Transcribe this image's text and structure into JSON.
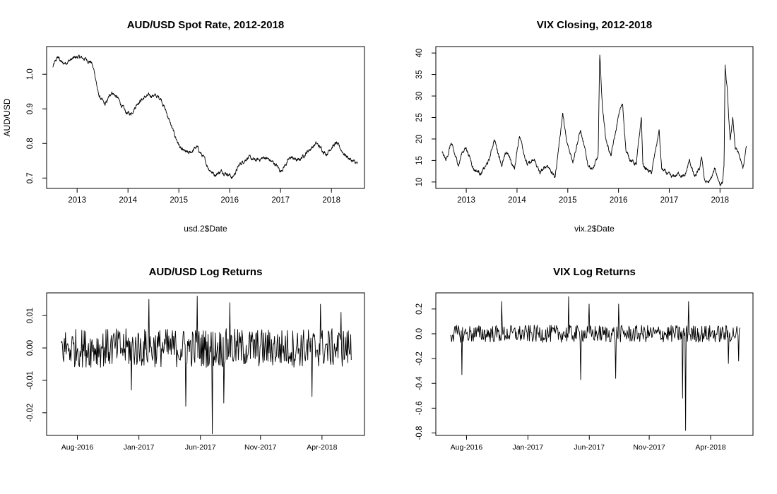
{
  "chart_data": [
    {
      "type": "line",
      "title": "AUD/USD Spot Rate, 2012-2018",
      "xlabel": "usd.2$Date",
      "ylabel": "AUD/USD",
      "xlim": [
        2012.4,
        2018.65
      ],
      "ylim": [
        0.67,
        1.08
      ],
      "x_ticks": [
        2013,
        2014,
        2015,
        2016,
        2017,
        2018
      ],
      "x_tick_labels": [
        "2013",
        "2014",
        "2015",
        "2016",
        "2017",
        "2018"
      ],
      "y_ticks": [
        0.7,
        0.8,
        0.9,
        1.0
      ],
      "y_tick_labels": [
        "0.7",
        "0.8",
        "0.9",
        "1.0"
      ],
      "grid": false,
      "series": [
        {
          "x": [
            2012.52,
            2012.62,
            2012.72,
            2012.85,
            2013.0,
            2013.15,
            2013.28,
            2013.35,
            2013.42,
            2013.55,
            2013.68,
            2013.8,
            2013.95,
            2014.05,
            2014.2,
            2014.35,
            2014.5,
            2014.65,
            2014.78,
            2014.9,
            2015.05,
            2015.2,
            2015.35,
            2015.48,
            2015.58,
            2015.7,
            2015.85,
            2016.0,
            2016.05,
            2016.2,
            2016.35,
            2016.5,
            2016.7,
            2016.9,
            2017.0,
            2017.2,
            2017.35,
            2017.55,
            2017.7,
            2017.9,
            2018.0,
            2018.1,
            2018.25,
            2018.4,
            2018.52
          ],
          "y": [
            1.02,
            1.05,
            1.03,
            1.04,
            1.05,
            1.045,
            1.035,
            1.0,
            0.94,
            0.91,
            0.95,
            0.93,
            0.89,
            0.885,
            0.92,
            0.935,
            0.94,
            0.93,
            0.88,
            0.83,
            0.78,
            0.77,
            0.79,
            0.76,
            0.73,
            0.71,
            0.72,
            0.71,
            0.7,
            0.74,
            0.76,
            0.75,
            0.76,
            0.74,
            0.72,
            0.76,
            0.75,
            0.78,
            0.8,
            0.77,
            0.79,
            0.8,
            0.77,
            0.75,
            0.74
          ]
        }
      ]
    },
    {
      "type": "line",
      "title": "VIX Closing, 2012-2018",
      "xlabel": "vix.2$Date",
      "ylabel": "",
      "xlim": [
        2012.4,
        2018.65
      ],
      "ylim": [
        8.5,
        41.5
      ],
      "x_ticks": [
        2013,
        2014,
        2015,
        2016,
        2017,
        2018
      ],
      "x_tick_labels": [
        "2013",
        "2014",
        "2015",
        "2016",
        "2017",
        "2018"
      ],
      "y_ticks": [
        10,
        15,
        20,
        25,
        30,
        35,
        40
      ],
      "y_tick_labels": [
        "10",
        "15",
        "20",
        "25",
        "30",
        "35",
        "40"
      ],
      "grid": false,
      "series": [
        {
          "x": [
            2012.52,
            2012.6,
            2012.7,
            2012.78,
            2012.85,
            2012.92,
            2013.0,
            2013.15,
            2013.3,
            2013.45,
            2013.55,
            2013.7,
            2013.8,
            2013.95,
            2014.05,
            2014.2,
            2014.35,
            2014.45,
            2014.6,
            2014.75,
            2014.8,
            2014.9,
            2014.98,
            2015.1,
            2015.25,
            2015.4,
            2015.5,
            2015.6,
            2015.63,
            2015.68,
            2015.75,
            2015.85,
            2015.95,
            2016.03,
            2016.08,
            2016.15,
            2016.25,
            2016.35,
            2016.45,
            2016.48,
            2016.55,
            2016.65,
            2016.8,
            2016.85,
            2016.95,
            2017.05,
            2017.2,
            2017.3,
            2017.4,
            2017.5,
            2017.6,
            2017.64,
            2017.7,
            2017.8,
            2017.9,
            2018.0,
            2018.05,
            2018.08,
            2018.1,
            2018.15,
            2018.2,
            2018.25,
            2018.3,
            2018.38,
            2018.45,
            2018.52
          ],
          "y": [
            17,
            15,
            19,
            16,
            14,
            17,
            18,
            13,
            12,
            15,
            20,
            14,
            17,
            13,
            21,
            14,
            15,
            12,
            14,
            11,
            16,
            26,
            19,
            15,
            22,
            14,
            13,
            16,
            40,
            28,
            20,
            16,
            22,
            27,
            28,
            17,
            15,
            14,
            25,
            14,
            13,
            12,
            22,
            13,
            12,
            11,
            12,
            11,
            15,
            11,
            13,
            16,
            10,
            10,
            13,
            9.5,
            10,
            14,
            37,
            30,
            19,
            25,
            18,
            16,
            13,
            18
          ]
        }
      ]
    },
    {
      "type": "line",
      "title": "AUD/USD Log Returns",
      "xlabel": "",
      "ylabel": "",
      "xlim": [
        2016.37,
        2018.54
      ],
      "ylim": [
        -0.027,
        0.017
      ],
      "x_ticks": [
        2016.58,
        2017.0,
        2017.42,
        2017.83,
        2018.25
      ],
      "x_tick_labels": [
        "Aug-2016",
        "Jan-2017",
        "Jun-2017",
        "Nov-2017",
        "Apr-2018"
      ],
      "y_ticks": [
        -0.02,
        -0.01,
        0.0,
        0.01
      ],
      "y_tick_labels": [
        "-0.02",
        "-0.01",
        "0.00",
        "0.01"
      ],
      "grid": false,
      "series": [
        {
          "x_range": [
            2016.47,
            2018.45
          ],
          "amplitude": 0.006,
          "spikes": [
            {
              "x": 2016.95,
              "y": -0.013
            },
            {
              "x": 2017.07,
              "y": 0.015
            },
            {
              "x": 2017.32,
              "y": -0.018
            },
            {
              "x": 2017.4,
              "y": 0.016
            },
            {
              "x": 2017.5,
              "y": -0.0265
            },
            {
              "x": 2017.58,
              "y": -0.017
            },
            {
              "x": 2017.62,
              "y": 0.014
            },
            {
              "x": 2018.18,
              "y": -0.015
            },
            {
              "x": 2018.24,
              "y": 0.0135
            },
            {
              "x": 2018.38,
              "y": 0.011
            }
          ]
        }
      ]
    },
    {
      "type": "line",
      "title": "VIX Log Returns",
      "xlabel": "",
      "ylabel": "",
      "xlim": [
        2016.37,
        2018.54
      ],
      "ylim": [
        -0.82,
        0.33
      ],
      "x_ticks": [
        2016.58,
        2017.0,
        2017.42,
        2017.83,
        2018.25
      ],
      "x_tick_labels": [
        "Aug-2016",
        "Jan-2017",
        "Jun-2017",
        "Nov-2017",
        "Apr-2018"
      ],
      "y_ticks": [
        -0.8,
        -0.6,
        -0.4,
        -0.2,
        0.0,
        0.2
      ],
      "y_tick_labels": [
        "-0.8",
        "-0.6",
        "-0.4",
        "-0.2",
        "0.0",
        "0.2"
      ],
      "grid": false,
      "series": [
        {
          "x_range": [
            2016.47,
            2018.45
          ],
          "amplitude": 0.07,
          "spikes": [
            {
              "x": 2016.55,
              "y": -0.33
            },
            {
              "x": 2016.82,
              "y": 0.26
            },
            {
              "x": 2017.28,
              "y": 0.3
            },
            {
              "x": 2017.36,
              "y": -0.37
            },
            {
              "x": 2017.42,
              "y": 0.24
            },
            {
              "x": 2017.6,
              "y": -0.36
            },
            {
              "x": 2017.62,
              "y": 0.24
            },
            {
              "x": 2018.06,
              "y": -0.52
            },
            {
              "x": 2018.08,
              "y": -0.78
            },
            {
              "x": 2018.1,
              "y": 0.26
            },
            {
              "x": 2018.37,
              "y": -0.24
            },
            {
              "x": 2018.44,
              "y": -0.22
            }
          ]
        }
      ]
    }
  ]
}
